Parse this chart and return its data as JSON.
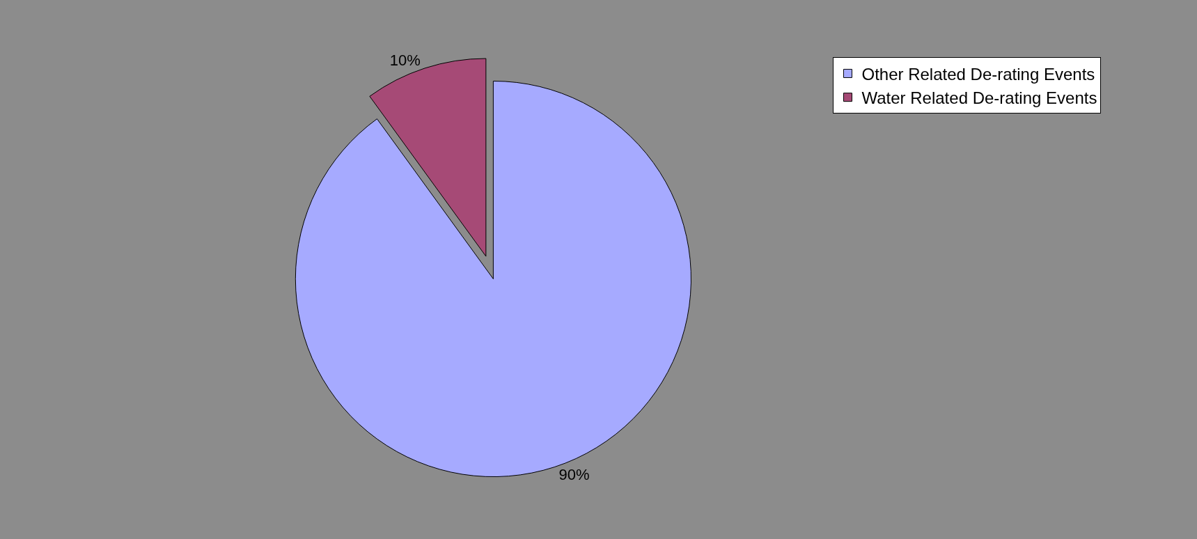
{
  "chart_data": {
    "type": "pie",
    "categories": [
      "Other Related De-rating Events",
      "Water Related De-rating Events"
    ],
    "values": [
      90,
      10
    ],
    "colors": [
      "#a6aaff",
      "#a64a76"
    ],
    "value_labels": [
      "90%",
      "10%"
    ],
    "legend": "top right"
  }
}
